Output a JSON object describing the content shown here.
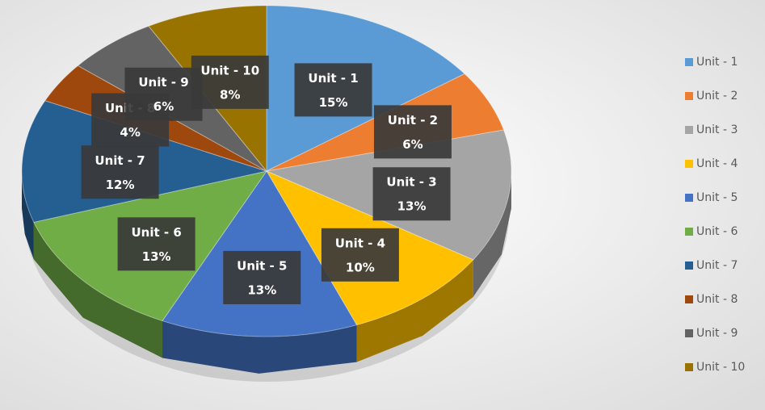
{
  "chart_data": {
    "type": "pie",
    "categories": [
      "Unit - 1",
      "Unit - 2",
      "Unit - 3",
      "Unit - 4",
      "Unit - 5",
      "Unit - 6",
      "Unit - 7",
      "Unit - 8",
      "Unit - 9",
      "Unit - 10"
    ],
    "values": [
      15,
      6,
      13,
      10,
      13,
      13,
      12,
      4,
      6,
      8
    ],
    "value_labels": [
      "15%",
      "6%",
      "13%",
      "10%",
      "13%",
      "13%",
      "12%",
      "4%",
      "6%",
      "8%"
    ],
    "colors": [
      "#5b9bd5",
      "#ed7d31",
      "#a5a5a5",
      "#ffc000",
      "#4472c4",
      "#70ad47",
      "#255e91",
      "#9e480e",
      "#636363",
      "#997300"
    ],
    "legend": "right"
  }
}
